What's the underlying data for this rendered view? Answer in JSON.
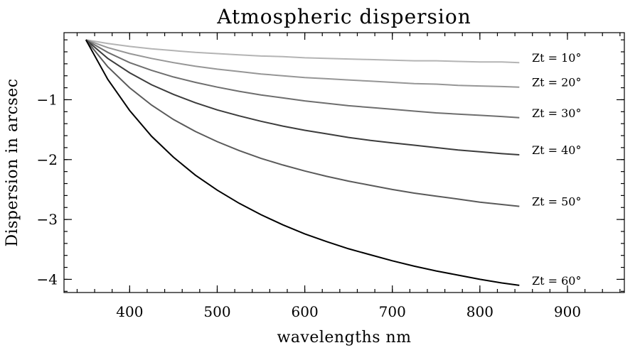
{
  "chart_data": {
    "type": "line",
    "title": "Atmospheric dispersion",
    "xlabel": "wavelengths nm",
    "ylabel": "Dispersion in arcsec",
    "xlim": [
      325,
      965
    ],
    "ylim": [
      -4.22,
      0.12
    ],
    "x_ticks": [
      400,
      500,
      600,
      700,
      800,
      900
    ],
    "x_tick_labels": [
      "400",
      "500",
      "600",
      "700",
      "800",
      "900"
    ],
    "x_minor_step": 20,
    "y_ticks": [
      -1,
      -2,
      -3,
      -4
    ],
    "y_tick_labels": [
      "−1",
      "−2",
      "−3",
      "−4"
    ],
    "y_minor_step": 0.2,
    "grid": false,
    "x": [
      350,
      375,
      400,
      425,
      450,
      475,
      500,
      525,
      550,
      575,
      600,
      625,
      650,
      675,
      700,
      725,
      750,
      775,
      800,
      825,
      845
    ],
    "series": [
      {
        "name": "Zt = 10°",
        "color": "#b4b4b4",
        "values": [
          0,
          -0.06,
          -0.11,
          -0.15,
          -0.18,
          -0.21,
          -0.23,
          -0.25,
          -0.27,
          -0.28,
          -0.3,
          -0.31,
          -0.32,
          -0.33,
          -0.34,
          -0.35,
          -0.35,
          -0.36,
          -0.37,
          -0.37,
          -0.38
        ]
      },
      {
        "name": "Zt = 20°",
        "color": "#969696",
        "values": [
          0,
          -0.13,
          -0.23,
          -0.31,
          -0.38,
          -0.44,
          -0.49,
          -0.53,
          -0.57,
          -0.6,
          -0.63,
          -0.65,
          -0.67,
          -0.69,
          -0.71,
          -0.73,
          -0.74,
          -0.76,
          -0.77,
          -0.78,
          -0.79
        ]
      },
      {
        "name": "Zt = 30°",
        "color": "#6e6e6e",
        "values": [
          0,
          -0.21,
          -0.38,
          -0.51,
          -0.62,
          -0.71,
          -0.79,
          -0.86,
          -0.92,
          -0.97,
          -1.02,
          -1.06,
          -1.1,
          -1.13,
          -1.16,
          -1.19,
          -1.22,
          -1.24,
          -1.26,
          -1.28,
          -1.3
        ]
      },
      {
        "name": "Zt = 40°",
        "color": "#3c3c3c",
        "values": [
          0,
          -0.31,
          -0.55,
          -0.75,
          -0.91,
          -1.05,
          -1.17,
          -1.27,
          -1.36,
          -1.44,
          -1.51,
          -1.57,
          -1.63,
          -1.68,
          -1.72,
          -1.76,
          -1.8,
          -1.84,
          -1.87,
          -1.9,
          -1.92
        ]
      },
      {
        "name": "Zt = 50°",
        "color": "#5a5a5a",
        "values": [
          0,
          -0.45,
          -0.8,
          -1.09,
          -1.33,
          -1.53,
          -1.7,
          -1.85,
          -1.98,
          -2.09,
          -2.19,
          -2.28,
          -2.36,
          -2.43,
          -2.5,
          -2.56,
          -2.61,
          -2.66,
          -2.71,
          -2.75,
          -2.78
        ]
      },
      {
        "name": "Zt = 60°",
        "color": "#000000",
        "values": [
          0,
          -0.66,
          -1.18,
          -1.61,
          -1.96,
          -2.26,
          -2.51,
          -2.73,
          -2.92,
          -3.09,
          -3.24,
          -3.37,
          -3.49,
          -3.59,
          -3.69,
          -3.78,
          -3.86,
          -3.93,
          -4.0,
          -4.06,
          -4.1
        ]
      }
    ]
  }
}
